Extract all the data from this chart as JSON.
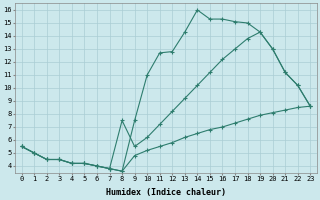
{
  "xlabel": "Humidex (Indice chaleur)",
  "bg_color": "#cce8ec",
  "line_color": "#2e7d6e",
  "grid_color": "#aacdd4",
  "xlim": [
    -0.5,
    23.5
  ],
  "ylim": [
    3.5,
    16.5
  ],
  "xticks": [
    0,
    1,
    2,
    3,
    4,
    5,
    6,
    7,
    8,
    9,
    10,
    11,
    12,
    13,
    14,
    15,
    16,
    17,
    18,
    19,
    20,
    21,
    22,
    23
  ],
  "yticks": [
    4,
    5,
    6,
    7,
    8,
    9,
    10,
    11,
    12,
    13,
    14,
    15,
    16
  ],
  "curve1_x": [
    0,
    1,
    2,
    3,
    4,
    5,
    6,
    7,
    8,
    9,
    10,
    11,
    12,
    13,
    14,
    15,
    16,
    17,
    18,
    19,
    20,
    21,
    22,
    23
  ],
  "curve1_y": [
    5.5,
    5.0,
    4.5,
    4.5,
    4.2,
    4.2,
    4.0,
    3.8,
    3.6,
    7.5,
    11.0,
    12.7,
    12.8,
    14.3,
    16.0,
    15.3,
    15.3,
    15.1,
    15.0,
    14.3,
    13.0,
    11.2,
    10.2,
    8.6
  ],
  "curve2_x": [
    0,
    1,
    2,
    3,
    4,
    5,
    6,
    7,
    8,
    9,
    10,
    11,
    12,
    13,
    14,
    15,
    16,
    17,
    18,
    19,
    20,
    21,
    22,
    23
  ],
  "curve2_y": [
    5.5,
    5.0,
    4.5,
    4.5,
    4.2,
    4.2,
    4.0,
    3.8,
    7.5,
    5.5,
    6.2,
    7.2,
    8.2,
    9.2,
    10.2,
    11.2,
    12.2,
    13.0,
    13.8,
    14.3,
    13.0,
    11.2,
    10.2,
    8.6
  ],
  "curve3_x": [
    0,
    1,
    2,
    3,
    4,
    5,
    6,
    7,
    8,
    9,
    10,
    11,
    12,
    13,
    14,
    15,
    16,
    17,
    18,
    19,
    20,
    21,
    22,
    23
  ],
  "curve3_y": [
    5.5,
    5.0,
    4.5,
    4.5,
    4.2,
    4.2,
    4.0,
    3.8,
    3.6,
    4.8,
    5.2,
    5.5,
    5.8,
    6.2,
    6.5,
    6.8,
    7.0,
    7.3,
    7.6,
    7.9,
    8.1,
    8.3,
    8.5,
    8.6
  ]
}
